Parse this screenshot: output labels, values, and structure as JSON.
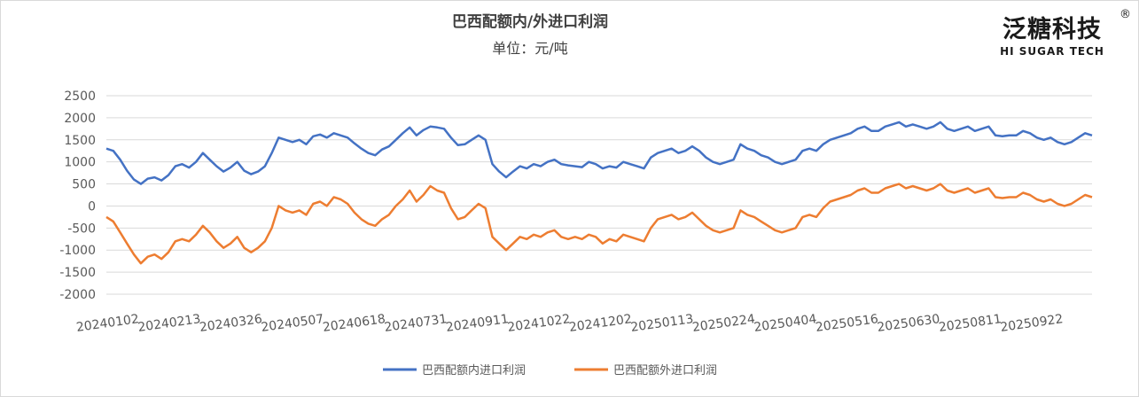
{
  "chart_data": {
    "type": "line",
    "title": "巴西配额内/外进口利润",
    "subtitle": "单位：元/吨",
    "ylim": [
      -2000,
      2500
    ],
    "yticks": [
      -2000,
      -1500,
      -1000,
      -500,
      0,
      500,
      1000,
      1500,
      2000,
      2500
    ],
    "xtick_labels": [
      "20240102",
      "20240213",
      "20240326",
      "20240507",
      "20240618",
      "20240731",
      "20240911",
      "20241022",
      "20241202",
      "20250113",
      "20250224",
      "20250404",
      "20250516",
      "20250630",
      "20250811",
      "20250922"
    ],
    "legend_position": "bottom",
    "series": [
      {
        "name": "巴西配额内进口利润",
        "color": "#4472c4",
        "values": [
          1300,
          1250,
          1050,
          800,
          600,
          500,
          620,
          650,
          580,
          700,
          900,
          950,
          870,
          1000,
          1200,
          1050,
          900,
          780,
          870,
          1000,
          800,
          720,
          780,
          900,
          1200,
          1550,
          1500,
          1450,
          1500,
          1400,
          1580,
          1620,
          1550,
          1650,
          1600,
          1550,
          1420,
          1300,
          1200,
          1150,
          1280,
          1350,
          1500,
          1650,
          1780,
          1600,
          1720,
          1800,
          1780,
          1750,
          1550,
          1380,
          1400,
          1500,
          1600,
          1500,
          950,
          780,
          650,
          780,
          900,
          850,
          950,
          900,
          1000,
          1050,
          950,
          920,
          900,
          880,
          1000,
          950,
          850,
          900,
          870,
          1000,
          950,
          900,
          850,
          1100,
          1200,
          1250,
          1300,
          1200,
          1250,
          1350,
          1250,
          1100,
          1000,
          950,
          1000,
          1050,
          1400,
          1300,
          1250,
          1150,
          1100,
          1000,
          950,
          1000,
          1050,
          1250,
          1300,
          1250,
          1400,
          1500,
          1550,
          1600,
          1650,
          1750,
          1800,
          1700,
          1700,
          1800,
          1850,
          1900,
          1800,
          1850,
          1800,
          1750,
          1800,
          1900,
          1750,
          1700,
          1750,
          1800,
          1700,
          1750,
          1800,
          1600,
          1580,
          1600,
          1600,
          1700,
          1650,
          1550,
          1500,
          1550,
          1450,
          1400,
          1450,
          1550,
          1650,
          1600
        ]
      },
      {
        "name": "巴西配额外进口利润",
        "color": "#ed7d31",
        "values": [
          -250,
          -350,
          -600,
          -850,
          -1100,
          -1300,
          -1150,
          -1100,
          -1200,
          -1050,
          -800,
          -750,
          -800,
          -650,
          -450,
          -600,
          -800,
          -950,
          -850,
          -700,
          -950,
          -1050,
          -950,
          -800,
          -500,
          0,
          -100,
          -150,
          -100,
          -200,
          50,
          100,
          0,
          200,
          150,
          50,
          -150,
          -300,
          -400,
          -450,
          -300,
          -200,
          0,
          150,
          350,
          100,
          250,
          450,
          350,
          300,
          -50,
          -300,
          -250,
          -100,
          50,
          -50,
          -700,
          -850,
          -1000,
          -850,
          -700,
          -750,
          -650,
          -700,
          -600,
          -550,
          -700,
          -750,
          -700,
          -750,
          -650,
          -700,
          -850,
          -750,
          -800,
          -650,
          -700,
          -750,
          -800,
          -500,
          -300,
          -250,
          -200,
          -300,
          -250,
          -150,
          -300,
          -450,
          -550,
          -600,
          -550,
          -500,
          -100,
          -200,
          -250,
          -350,
          -450,
          -550,
          -600,
          -550,
          -500,
          -250,
          -200,
          -250,
          -50,
          100,
          150,
          200,
          250,
          350,
          400,
          300,
          300,
          400,
          450,
          500,
          400,
          450,
          400,
          350,
          400,
          500,
          350,
          300,
          350,
          400,
          300,
          350,
          400,
          200,
          180,
          200,
          200,
          300,
          250,
          150,
          100,
          150,
          50,
          0,
          50,
          150,
          250,
          200
        ]
      }
    ]
  },
  "logo": {
    "cn": "泛糖科技",
    "en": "HI SUGAR TECH",
    "reg": "®"
  }
}
